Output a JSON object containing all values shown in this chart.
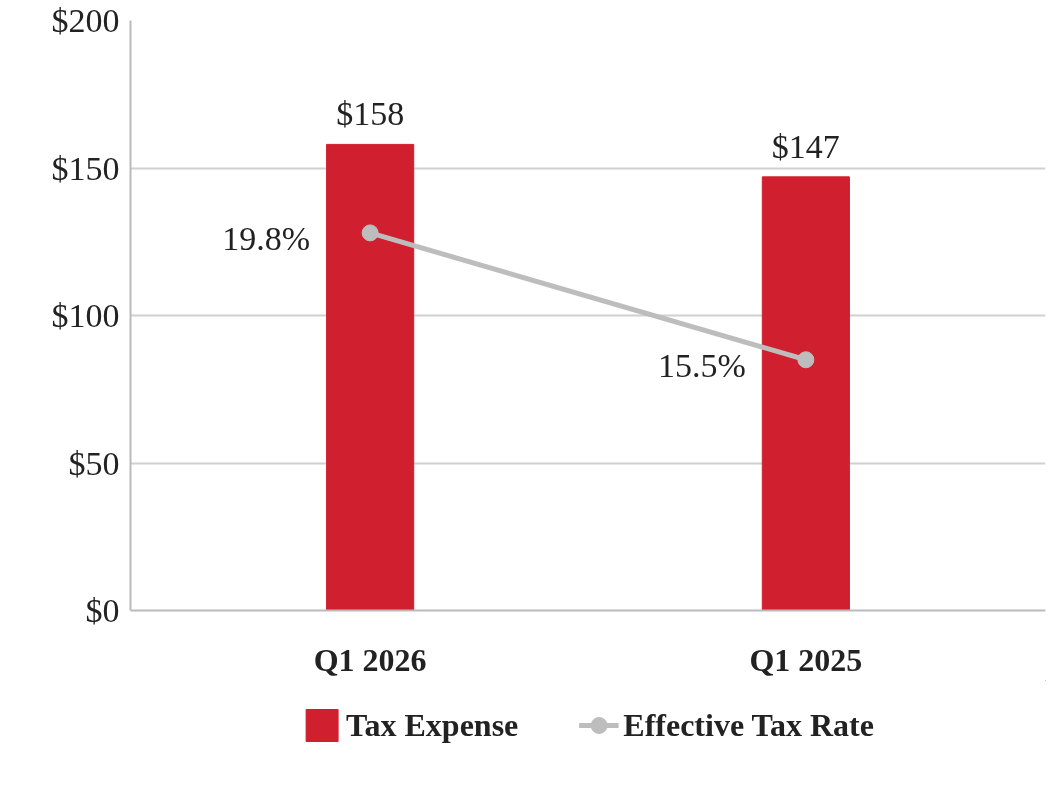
{
  "chart_data": {
    "type": "bar",
    "categories": [
      "Q1 2026",
      "Q1 2025"
    ],
    "series": [
      {
        "name": "Tax Expense",
        "type": "bar",
        "color": "#d0202f",
        "values": [
          158,
          147
        ],
        "value_labels": [
          "$158",
          "$147"
        ]
      },
      {
        "name": "Effective Tax Rate",
        "type": "line",
        "axis": "y2",
        "color": "#bdbdbd",
        "marker": "circle",
        "values": [
          19.8,
          15.5
        ],
        "value_labels": [
          "19.8%",
          "15.5%"
        ]
      }
    ],
    "ylim": [
      0,
      200
    ],
    "yticks": [
      {
        "value": 0,
        "label": "$0"
      },
      {
        "value": 50,
        "label": "$50"
      },
      {
        "value": 100,
        "label": "$100"
      },
      {
        "value": 150,
        "label": "$150"
      },
      {
        "value": 200,
        "label": "$200"
      }
    ],
    "y2lim": [
      7,
      27
    ],
    "grid": "y",
    "legend": "bottom"
  }
}
